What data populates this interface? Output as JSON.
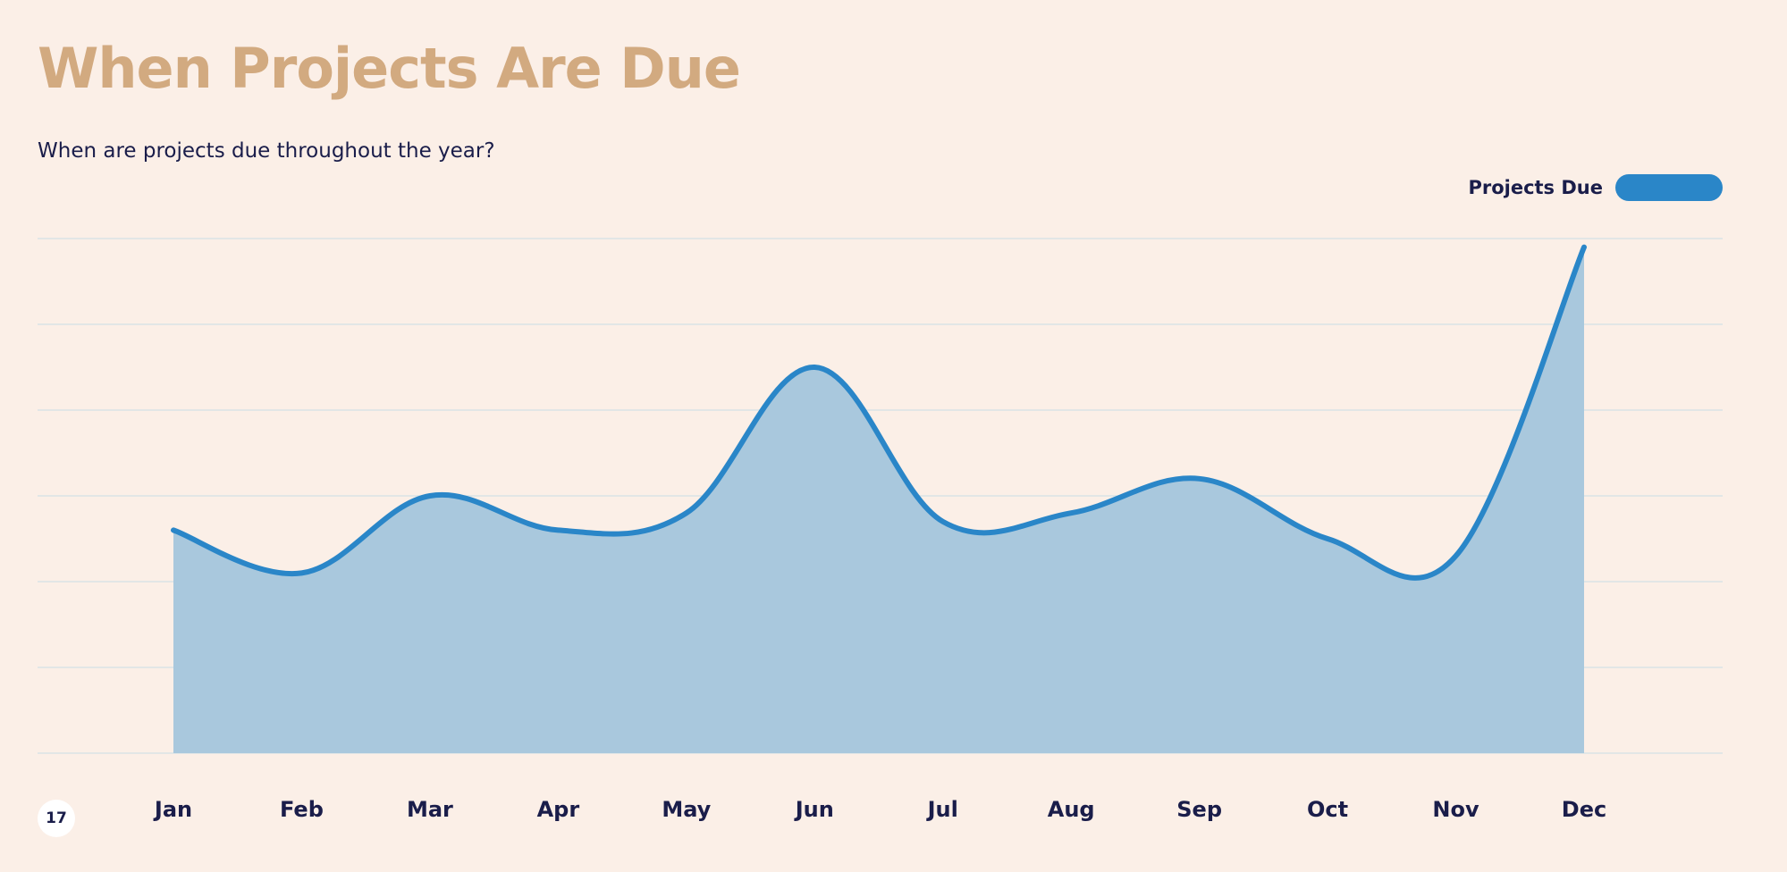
{
  "title": "When Projects Are Due",
  "subtitle": "When are projects due throughout the year?",
  "page_number": "17",
  "colors": {
    "background": "#fbefe7",
    "title": "#d2aa80",
    "text": "#1a1d4a",
    "line": "#2a86c8",
    "area": "#a9c8dd",
    "grid": "#d9e3e6"
  },
  "chart_data": {
    "type": "area",
    "title": "When Projects Are Due",
    "subtitle": "When are projects due throughout the year?",
    "categories": [
      "Jan",
      "Feb",
      "Mar",
      "Apr",
      "May",
      "Jun",
      "Jul",
      "Aug",
      "Sep",
      "Oct",
      "Nov",
      "Dec"
    ],
    "series": [
      {
        "name": "Projects Due",
        "values": [
          2.6,
          2.1,
          3.0,
          2.6,
          2.8,
          4.5,
          2.7,
          2.8,
          3.2,
          2.5,
          2.3,
          5.9
        ]
      }
    ],
    "ylim": [
      0,
      6
    ],
    "y_gridlines": [
      0,
      1,
      2,
      3,
      4,
      5,
      6
    ],
    "y_tick_labels_shown": false,
    "grid": true,
    "legend": "top-right",
    "smooth": true
  }
}
